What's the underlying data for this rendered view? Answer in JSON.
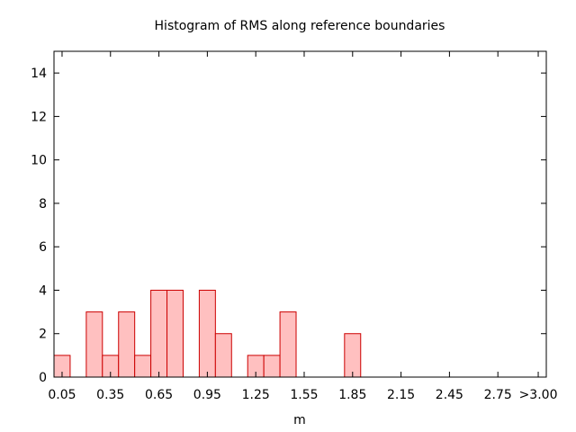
{
  "chart_data": {
    "type": "bar",
    "title": "Histogram of RMS along reference boundaries",
    "xlabel": "m",
    "ylabel": "",
    "bin_width": 0.1,
    "bin_centers": [
      0.05,
      0.25,
      0.35,
      0.45,
      0.55,
      0.65,
      0.75,
      0.95,
      1.05,
      1.25,
      1.35,
      1.45,
      1.85
    ],
    "values": [
      1,
      3,
      1,
      3,
      1,
      4,
      4,
      4,
      2,
      1,
      1,
      3,
      2
    ],
    "xlim": [
      0.0,
      3.05
    ],
    "ylim": [
      0,
      15
    ],
    "x_tick_values": [
      0.05,
      0.35,
      0.65,
      0.95,
      1.25,
      1.55,
      1.85,
      2.15,
      2.45,
      2.75,
      3.0
    ],
    "x_tick_labels": [
      "0.05",
      "0.35",
      "0.65",
      "0.95",
      "1.25",
      "1.55",
      "1.85",
      "2.15",
      "2.45",
      "2.75",
      ">3.00"
    ],
    "y_ticks": [
      0,
      2,
      4,
      6,
      8,
      10,
      12,
      14
    ],
    "y_tick_labels": [
      "0",
      "2",
      "4",
      "6",
      "8",
      "10",
      "12",
      "14"
    ],
    "grid": false,
    "legend": "none",
    "bar_fill": "#ffc0c0",
    "bar_stroke": "#cc0000"
  }
}
